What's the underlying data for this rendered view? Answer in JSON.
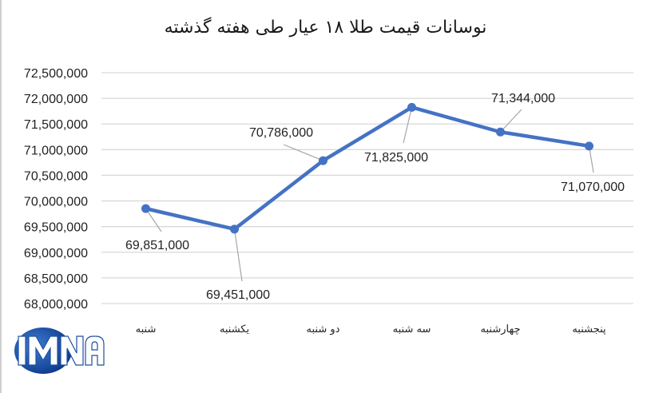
{
  "title": "نوسانات قیمت طلا ۱۸ عیار طی هفته گذشته",
  "logo": {
    "text": "IMNA",
    "color": "#1d4fa0"
  },
  "colors": {
    "line": "#4472c4",
    "grid": "#d9d9d9",
    "leader": "#a6a6a6"
  },
  "chart_data": {
    "type": "line",
    "title": "نوسانات قیمت طلا ۱۸ عیار طی هفته گذشته",
    "xlabel": "",
    "ylabel": "",
    "categories": [
      "شنبه",
      "یکشنبه",
      "دو شنبه",
      "سه شنبه",
      "چهارشنبه",
      "پنجشنبه"
    ],
    "series": [
      {
        "name": "قیمت طلا ۱۸ عیار",
        "values": [
          69851000,
          69451000,
          70786000,
          71825000,
          71344000,
          71070000
        ]
      }
    ],
    "data_labels": [
      "69,851,000",
      "69,451,000",
      "70,786,000",
      "71,825,000",
      "71,344,000",
      "71,070,000"
    ],
    "ylim": [
      68000000,
      72500000
    ],
    "yticks": [
      72500000,
      72000000,
      71500000,
      71000000,
      70500000,
      70000000,
      69500000,
      69000000,
      68500000,
      68000000
    ],
    "ytick_labels": [
      "72,500,000",
      "72,000,000",
      "71,500,000",
      "71,000,000",
      "70,500,000",
      "70,000,000",
      "69,500,000",
      "69,000,000",
      "68,500,000",
      "68,000,000"
    ],
    "grid": true,
    "legend": "none"
  }
}
